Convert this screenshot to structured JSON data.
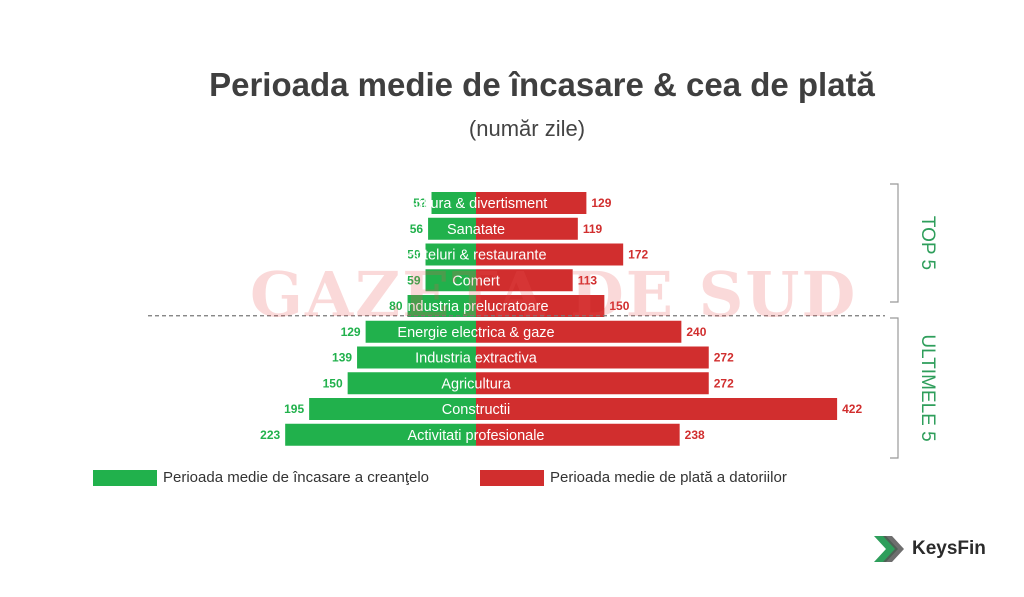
{
  "chart_data": {
    "type": "bar",
    "title": "Perioada medie de încasare & cea de plată",
    "subtitle": "(număr zile)",
    "categories": [
      "Cultura & divertisment",
      "Sanatate",
      "Hoteluri & restaurante",
      "Comert",
      "Industria prelucratoare",
      "Energie electrica & gaze",
      "Industria extractiva",
      "Agricultura",
      "Constructii",
      "Activitati profesionale"
    ],
    "series": [
      {
        "name": "Perioada medie de încasare a creanţelo",
        "color": "#21b14c",
        "values": [
          52,
          56,
          59,
          59,
          80,
          129,
          139,
          150,
          195,
          223
        ]
      },
      {
        "name": "Perioada medie de plată a datoriilor",
        "color": "#d12e2e",
        "values": [
          129,
          119,
          172,
          113,
          150,
          240,
          272,
          272,
          422,
          238
        ]
      }
    ],
    "groups": [
      {
        "label": "TOP 5",
        "count": 5
      },
      {
        "label": "ULTIMELE 5",
        "count": 5
      }
    ]
  },
  "watermark": "GAZETA DE SUD",
  "logo": {
    "text": "KeysFin",
    "color": "#2e9e5b"
  }
}
